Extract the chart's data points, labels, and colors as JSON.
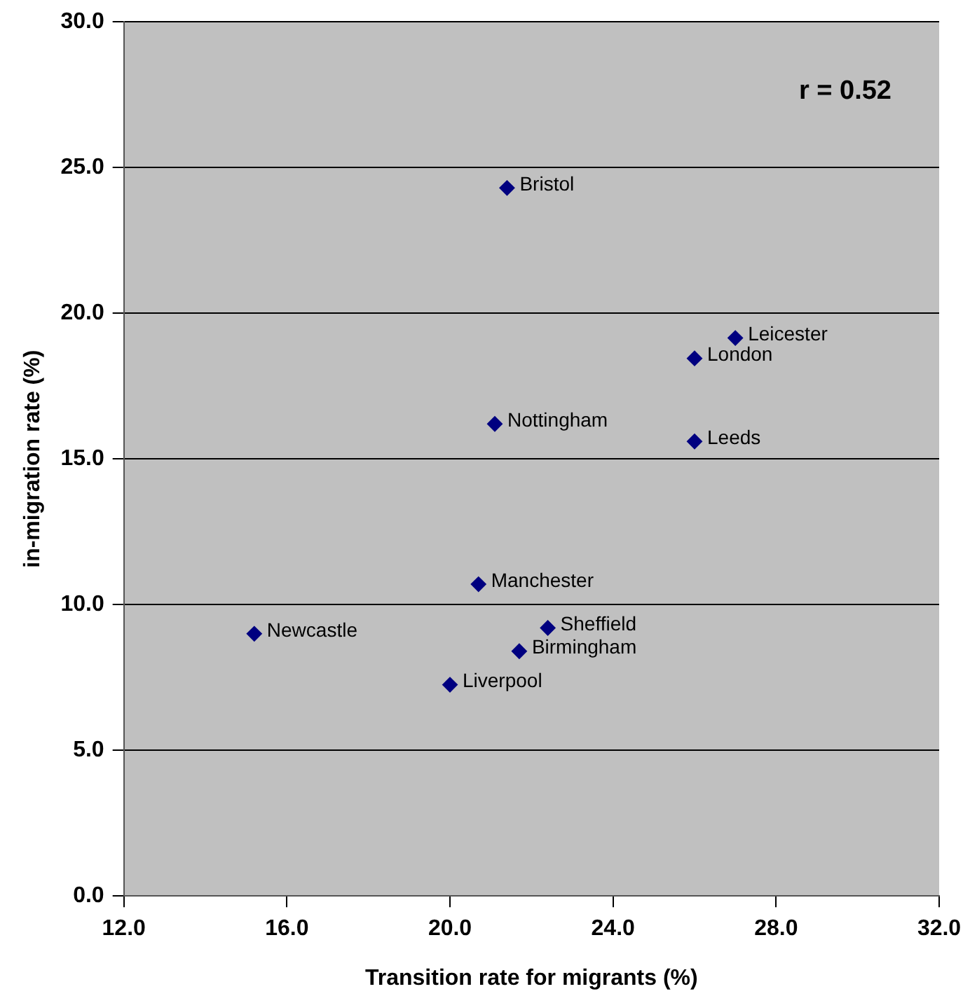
{
  "chart_data": {
    "type": "scatter",
    "xlabel": "Transition rate for migrants (%)",
    "ylabel": "in-migration rate (%)",
    "x": [
      21.4,
      27.0,
      26.0,
      21.1,
      26.0,
      20.7,
      15.2,
      22.4,
      21.7,
      20.0
    ],
    "values": [
      24.3,
      19.15,
      18.45,
      16.2,
      15.6,
      10.7,
      9.0,
      9.2,
      8.4,
      7.25
    ],
    "color": "#000080",
    "marker": "diamond",
    "grid": "y",
    "legend": false,
    "xlim": [
      12,
      32
    ],
    "ylim": [
      0,
      30
    ],
    "xticks": [
      {
        "value": 12,
        "label": "12.0"
      },
      {
        "value": 16,
        "label": "16.0"
      },
      {
        "value": 20,
        "label": "20.0"
      },
      {
        "value": 24,
        "label": "24.0"
      },
      {
        "value": 28,
        "label": "28.0"
      },
      {
        "value": 32,
        "label": "32.0"
      }
    ],
    "yticks": [
      {
        "value": 0,
        "label": "0.0"
      },
      {
        "value": 5,
        "label": "5.0"
      },
      {
        "value": 10,
        "label": "10.0"
      },
      {
        "value": 15,
        "label": "15.0"
      },
      {
        "value": 20,
        "label": "20.0"
      },
      {
        "value": 25,
        "label": "25.0"
      },
      {
        "value": 30,
        "label": "30.0"
      }
    ],
    "annotations": [
      "r = 0.52",
      {
        "text": "Bristol",
        "x": 21.4,
        "y": 24.3
      },
      {
        "text": "Leicester",
        "x": 27.0,
        "y": 19.15
      },
      {
        "text": "London",
        "x": 26.0,
        "y": 18.45
      },
      {
        "text": "Nottingham",
        "x": 21.1,
        "y": 16.2
      },
      {
        "text": "Leeds",
        "x": 26.0,
        "y": 15.6
      },
      {
        "text": "Manchester",
        "x": 20.7,
        "y": 10.7
      },
      {
        "text": "Newcastle",
        "x": 15.2,
        "y": 9.0
      },
      {
        "text": "Sheffield",
        "x": 22.4,
        "y": 9.2
      },
      {
        "text": "Birmingham",
        "x": 21.7,
        "y": 8.4
      },
      {
        "text": "Liverpool",
        "x": 20.0,
        "y": 7.25
      }
    ]
  }
}
